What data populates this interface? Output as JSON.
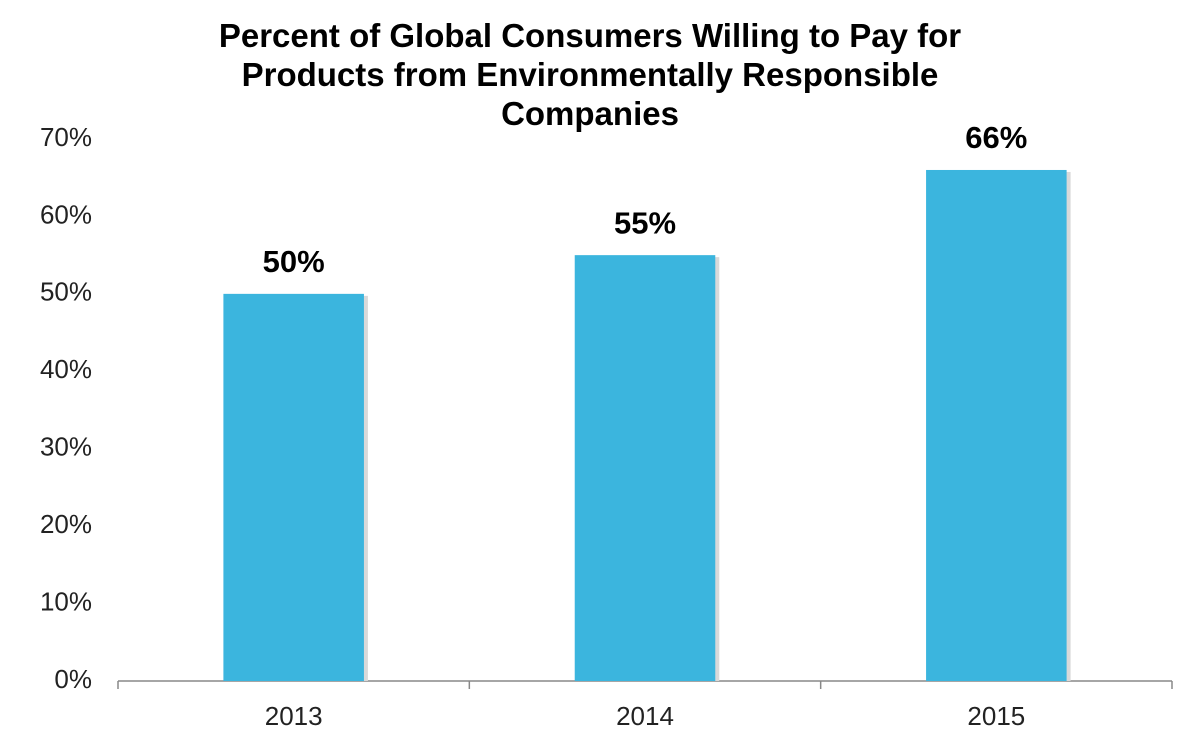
{
  "chart_data": {
    "type": "bar",
    "title": "Percent of Global Consumers Willing to Pay for Products from Environmentally Responsible Companies",
    "categories": [
      "2013",
      "2014",
      "2015"
    ],
    "values": [
      50,
      55,
      66
    ],
    "value_labels": [
      "50%",
      "55%",
      "66%"
    ],
    "color": "#3bb5de",
    "ylim": [
      0,
      70
    ],
    "yticks": [
      {
        "value": 0,
        "label": "0%"
      },
      {
        "value": 10,
        "label": "10%"
      },
      {
        "value": 20,
        "label": "20%"
      },
      {
        "value": 30,
        "label": "30%"
      },
      {
        "value": 40,
        "label": "40%"
      },
      {
        "value": 50,
        "label": "50%"
      },
      {
        "value": 60,
        "label": "60%"
      },
      {
        "value": 70,
        "label": "70%"
      }
    ],
    "grid": false
  }
}
